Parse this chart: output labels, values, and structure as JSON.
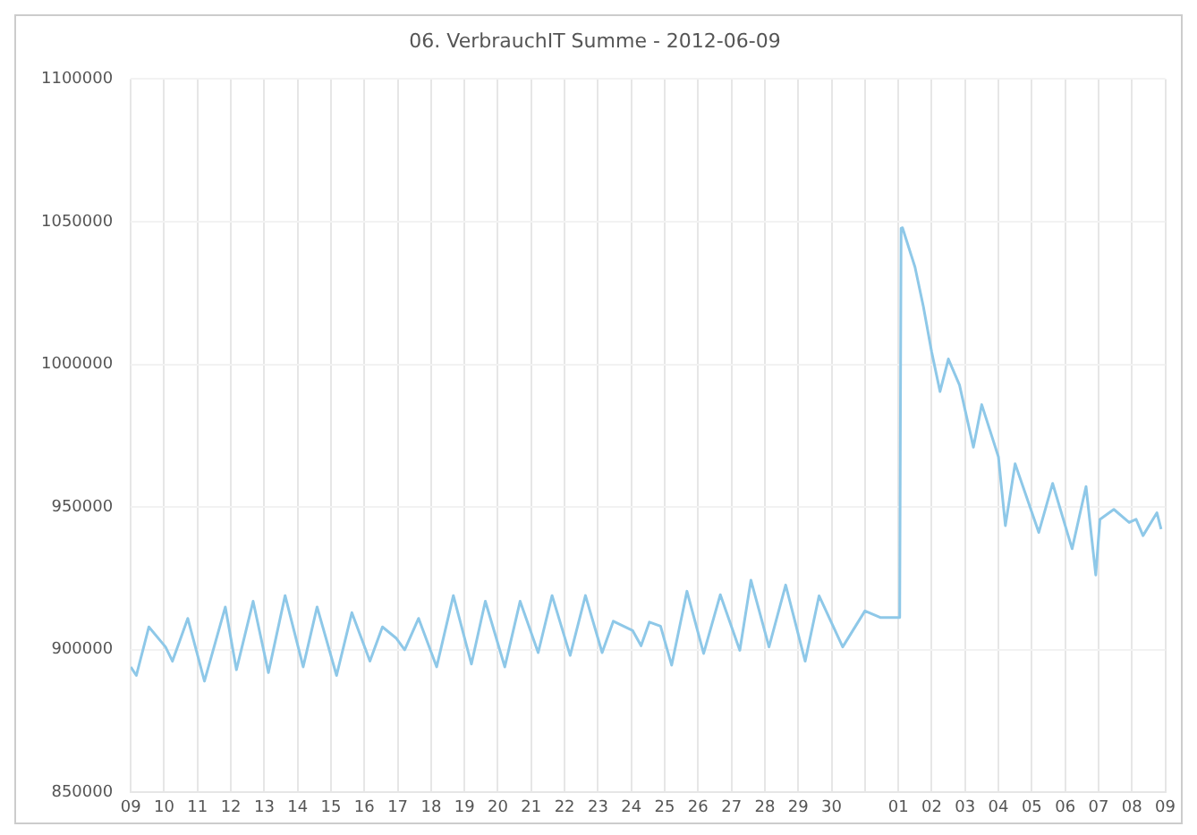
{
  "chart_data": {
    "type": "line",
    "title": "06. VerbrauchIT Summe - 2012-06-09",
    "x": [
      "2012-05-09T00:00",
      "2012-05-09T04:00",
      "2012-05-09T13:00",
      "2012-05-10T01:00",
      "2012-05-10T06:00",
      "2012-05-10T17:00",
      "2012-05-11T05:00",
      "2012-05-11T20:00",
      "2012-05-12T04:00",
      "2012-05-12T16:00",
      "2012-05-13T03:00",
      "2012-05-13T15:00",
      "2012-05-14T04:00",
      "2012-05-14T14:00",
      "2012-05-15T04:00",
      "2012-05-15T15:00",
      "2012-05-16T04:00",
      "2012-05-16T13:00",
      "2012-05-16T23:00",
      "2012-05-17T05:00",
      "2012-05-17T15:00",
      "2012-05-18T04:00",
      "2012-05-18T16:00",
      "2012-05-19T05:00",
      "2012-05-19T15:00",
      "2012-05-20T05:00",
      "2012-05-20T16:00",
      "2012-05-21T05:00",
      "2012-05-21T15:00",
      "2012-05-22T04:00",
      "2012-05-22T15:00",
      "2012-05-23T03:00",
      "2012-05-23T11:00",
      "2012-05-24T01:00",
      "2012-05-24T07:00",
      "2012-05-24T13:00",
      "2012-05-24T21:00",
      "2012-05-25T05:00",
      "2012-05-25T16:00",
      "2012-05-26T04:00",
      "2012-05-26T16:00",
      "2012-05-27T06:00",
      "2012-05-27T14:00",
      "2012-05-28T03:00",
      "2012-05-28T15:00",
      "2012-05-29T05:00",
      "2012-05-29T15:00",
      "2012-05-30T08:00",
      "2012-05-31T00:00",
      "2012-05-31T11:00",
      "2012-06-01T01:00",
      "2012-06-01T02:00",
      "2012-06-01T03:00",
      "2012-06-01T12:00",
      "2012-06-01T18:00",
      "2012-06-02T00:00",
      "2012-06-02T06:00",
      "2012-06-02T12:00",
      "2012-06-02T20:00",
      "2012-06-03T06:00",
      "2012-06-03T12:00",
      "2012-06-04T00:00",
      "2012-06-04T05:00",
      "2012-06-04T12:00",
      "2012-06-05T05:00",
      "2012-06-05T15:00",
      "2012-06-06T05:00",
      "2012-06-06T15:00",
      "2012-06-06T22:00",
      "2012-06-07T01:00",
      "2012-06-07T11:00",
      "2012-06-07T22:00",
      "2012-06-08T03:00",
      "2012-06-08T08:00",
      "2012-06-08T18:00",
      "2012-06-08T21:00"
    ],
    "series": [
      {
        "color": "#8ec8e8",
        "values": [
          894000,
          891000,
          908000,
          901000,
          896000,
          911000,
          889000,
          915000,
          893000,
          917000,
          892000,
          919000,
          894000,
          915000,
          891000,
          913000,
          896000,
          908000,
          904000,
          900000,
          911000,
          894000,
          919000,
          895000,
          917000,
          894000,
          917000,
          899000,
          919000,
          898000,
          919000,
          899000,
          910000,
          906700,
          901400,
          909700,
          908300,
          894600,
          920500,
          898700,
          919300,
          899800,
          924400,
          901000,
          922700,
          896000,
          918900,
          901000,
          913600,
          911300,
          911300,
          1047700,
          1047900,
          1034100,
          1020300,
          1004300,
          990500,
          1001900,
          992800,
          971000,
          985900,
          967600,
          943500,
          965200,
          941100,
          958300,
          935400,
          957200,
          926200,
          945700,
          949200,
          944600,
          945700,
          940000,
          948000,
          942300
        ]
      }
    ],
    "xlim": [
      "2012-05-09",
      "2012-06-09"
    ],
    "xticks": [
      {
        "value": "2012-05-09",
        "label": "09"
      },
      {
        "value": "2012-05-10",
        "label": "10"
      },
      {
        "value": "2012-05-11",
        "label": "11"
      },
      {
        "value": "2012-05-12",
        "label": "12"
      },
      {
        "value": "2012-05-13",
        "label": "13"
      },
      {
        "value": "2012-05-14",
        "label": "14"
      },
      {
        "value": "2012-05-15",
        "label": "15"
      },
      {
        "value": "2012-05-16",
        "label": "16"
      },
      {
        "value": "2012-05-17",
        "label": "17"
      },
      {
        "value": "2012-05-18",
        "label": "18"
      },
      {
        "value": "2012-05-19",
        "label": "19"
      },
      {
        "value": "2012-05-20",
        "label": "20"
      },
      {
        "value": "2012-05-21",
        "label": "21"
      },
      {
        "value": "2012-05-22",
        "label": "22"
      },
      {
        "value": "2012-05-23",
        "label": "23"
      },
      {
        "value": "2012-05-24",
        "label": "24"
      },
      {
        "value": "2012-05-25",
        "label": "25"
      },
      {
        "value": "2012-05-26",
        "label": "26"
      },
      {
        "value": "2012-05-27",
        "label": "27"
      },
      {
        "value": "2012-05-28",
        "label": "28"
      },
      {
        "value": "2012-05-29",
        "label": "29"
      },
      {
        "value": "2012-05-30",
        "label": "30"
      },
      {
        "value": "2012-05-31",
        "label": null
      },
      {
        "value": "2012-06-01",
        "label": "01"
      },
      {
        "value": "2012-06-02",
        "label": "02"
      },
      {
        "value": "2012-06-03",
        "label": "03"
      },
      {
        "value": "2012-06-04",
        "label": "04"
      },
      {
        "value": "2012-06-05",
        "label": "05"
      },
      {
        "value": "2012-06-06",
        "label": "06"
      },
      {
        "value": "2012-06-07",
        "label": "07"
      },
      {
        "value": "2012-06-08",
        "label": "08"
      },
      {
        "value": "2012-06-09",
        "label": "09"
      }
    ],
    "ylim": [
      850000,
      1100000
    ],
    "yticks": [
      850000,
      900000,
      950000,
      1000000,
      1050000,
      1100000
    ],
    "grid": true,
    "legend": false,
    "marker": "none",
    "line_style": "solid"
  }
}
